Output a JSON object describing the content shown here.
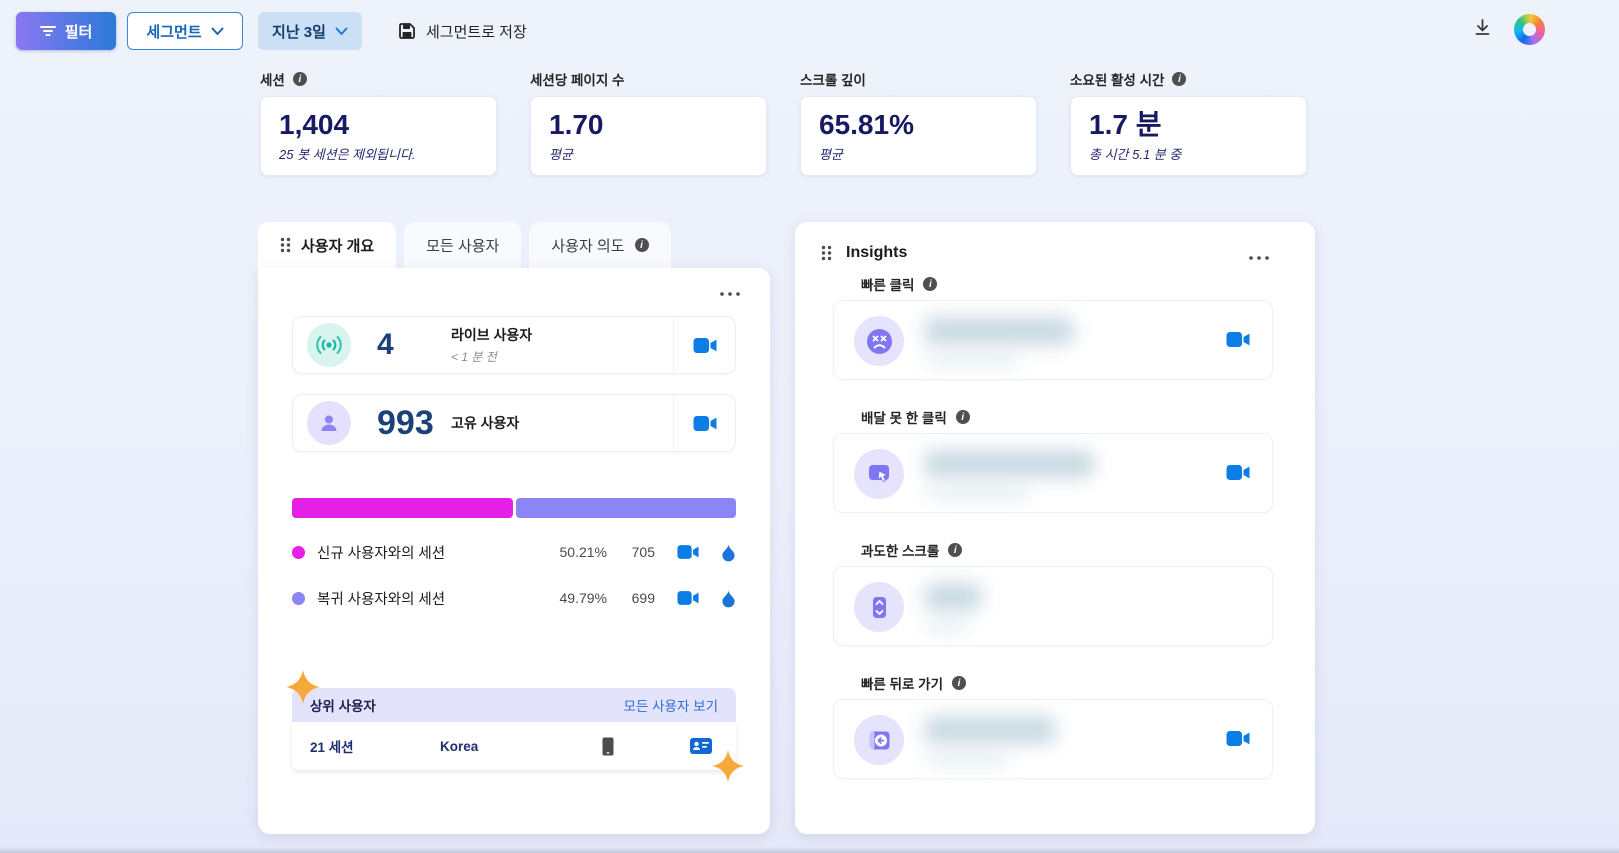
{
  "toolbar": {
    "filter_label": "필터",
    "segment_label": "세그먼트",
    "date_range_label": "지난 3일",
    "save_segment_label": "세그먼트로 저장"
  },
  "metrics": [
    {
      "label": "세션",
      "value": "1,404",
      "subtext": "25 봇 세션은 제외됩니다."
    },
    {
      "label": "세션당 페이지 수",
      "value": "1.70",
      "subtext": "평균"
    },
    {
      "label": "스크롤 깊이",
      "value": "65.81%",
      "subtext": "평균"
    },
    {
      "label": "소요된 활성 시간",
      "value": "1.7 분",
      "subtext": "총 시간 5.1 분 중"
    }
  ],
  "overview": {
    "tabs": [
      {
        "label": "사용자 개요",
        "active": true
      },
      {
        "label": "모든 사용자",
        "active": false
      },
      {
        "label": "사용자 의도",
        "active": false
      }
    ],
    "live_users": {
      "value": "4",
      "label": "라이브 사용자",
      "subtext": "< 1 분 전"
    },
    "unique_users": {
      "value": "993",
      "label": "고유 사용자"
    },
    "chart_data": {
      "type": "bar",
      "variant": "horizontal-stacked",
      "categories": [
        "신규 사용자와의 세션",
        "복귀 사용자와의 세션"
      ],
      "values": [
        50.21,
        49.79
      ],
      "counts": [
        705,
        699
      ],
      "colors": [
        "#e51fe5",
        "#8b85f8"
      ],
      "legend_position": "below"
    },
    "sessions": [
      {
        "label": "신규 사용자와의 세션",
        "percent": "50.21%",
        "count": "705"
      },
      {
        "label": "복귀 사용자와의 세션",
        "percent": "49.79%",
        "count": "699"
      }
    ],
    "top_users": {
      "title": "상위 사용자",
      "link_label": "모든 사용자 보기",
      "row": {
        "sessions": "21 세션",
        "country": "Korea"
      }
    }
  },
  "insights": {
    "title": "Insights",
    "sections": [
      {
        "label": "빠른 클릭",
        "icon": "rage-click-icon",
        "value_blurred": true,
        "has_video": true
      },
      {
        "label": "배달 못 한 클릭",
        "icon": "dead-click-icon",
        "value_blurred": true,
        "has_video": true
      },
      {
        "label": "과도한 스크롤",
        "icon": "excessive-scroll-icon",
        "value_blurred": true,
        "has_video": false
      },
      {
        "label": "빠른 뒤로 가기",
        "icon": "quick-back-icon",
        "value_blurred": true,
        "has_video": true
      }
    ]
  },
  "colors": {
    "accent_blue": "#0b7de4",
    "magenta": "#e51fe5",
    "purple": "#8b85f8",
    "teal": "#14b89c",
    "lavender_icon": "#8176f2",
    "gold_sparkle": "#f7a83b",
    "navy_value": "#171a63",
    "link_blue": "#2f6bd8"
  }
}
